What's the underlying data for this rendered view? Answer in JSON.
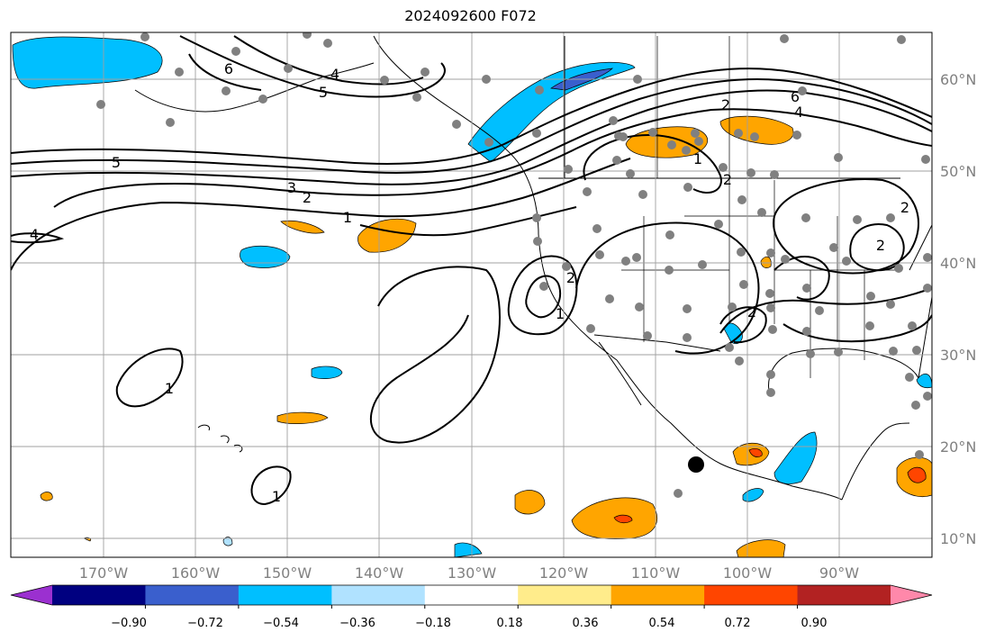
{
  "title": "2024092600 F072",
  "lon_labels": [
    "170°W",
    "160°W",
    "150°W",
    "140°W",
    "130°W",
    "120°W",
    "110°W",
    "100°W",
    "90°W"
  ],
  "lat_labels": [
    "60°N",
    "50°N",
    "40°N",
    "30°N",
    "20°N",
    "10°N"
  ],
  "colorbar": {
    "colors": [
      "#9b30d0",
      "#000080",
      "#3a5fcd",
      "#00bfff",
      "#b0e2ff",
      "#ffffff",
      "#ffec8b",
      "#ffa500",
      "#ff4500",
      "#b22222",
      "#ff88aa"
    ],
    "ticks": [
      "−0.90",
      "−0.72",
      "−0.54",
      "−0.36",
      "−0.18",
      "0.18",
      "0.36",
      "0.54",
      "0.72",
      "0.90"
    ]
  },
  "contour_labels": [
    "6",
    "4",
    "5",
    "5",
    "3",
    "2",
    "1",
    "4",
    "1",
    "2",
    "2",
    "6",
    "4",
    "2",
    "2",
    "2",
    "2",
    "1",
    "1",
    "1"
  ]
}
